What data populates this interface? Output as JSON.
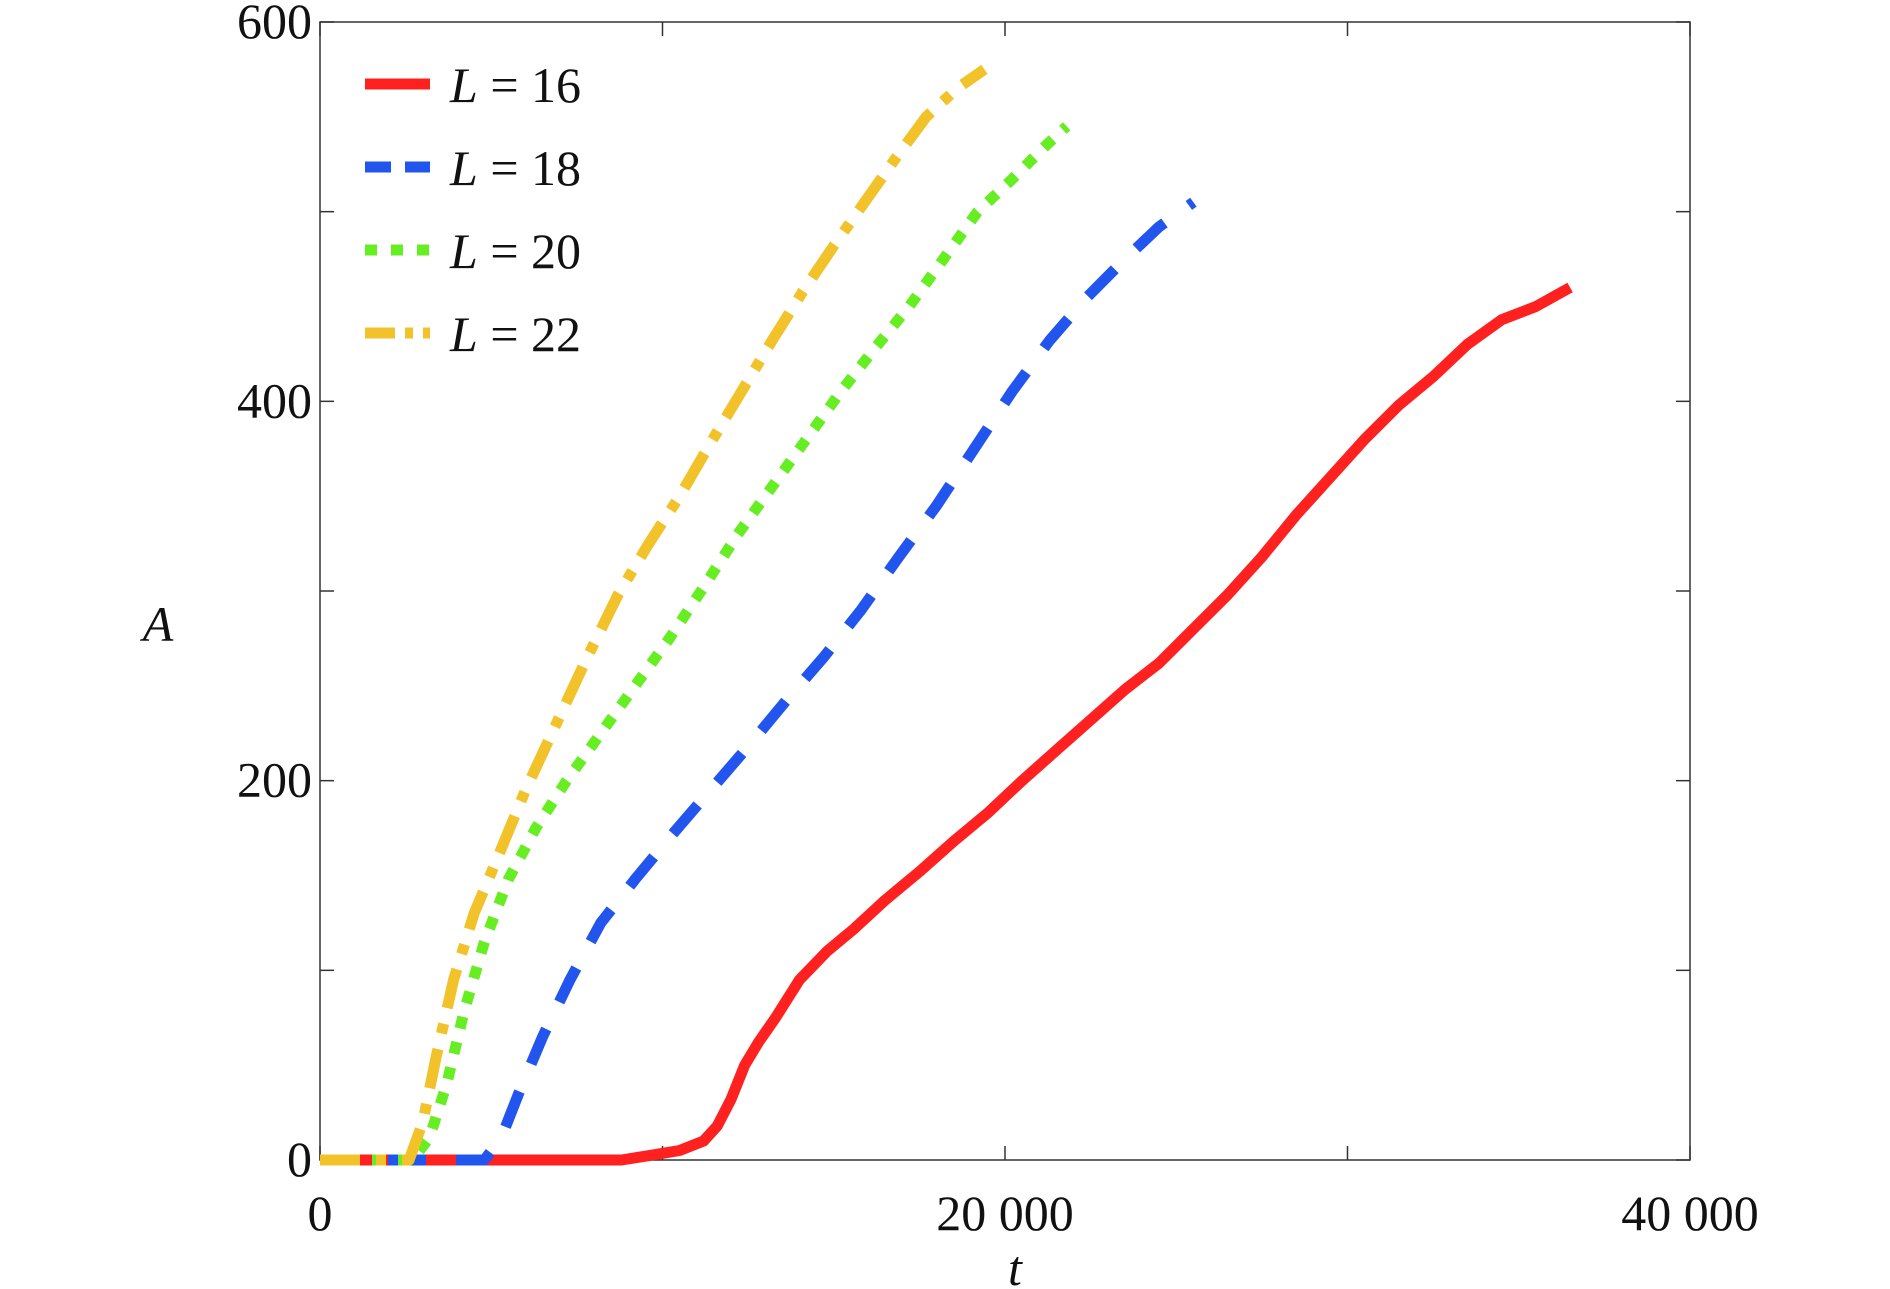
{
  "chart_data": {
    "type": "line",
    "xlabel": "t",
    "ylabel": "A",
    "xlim": [
      0,
      40000
    ],
    "ylim": [
      0,
      600
    ],
    "x_ticks": [
      0,
      10000,
      20000,
      30000,
      40000
    ],
    "x_tick_labels": [
      "0",
      "",
      "20 000",
      "",
      "40 000"
    ],
    "y_ticks": [
      0,
      100,
      200,
      300,
      400,
      500,
      600
    ],
    "y_tick_labels": [
      "0",
      "",
      "200",
      "",
      "400",
      "",
      "600"
    ],
    "grid": false,
    "legend_position": "top-left",
    "series": [
      {
        "name": "L = 16",
        "legend_var": "L",
        "legend_value": "= 16",
        "color": "#ff2020",
        "style": "solid",
        "x": [
          0,
          8800,
          9500,
          10500,
          11200,
          11600,
          12000,
          12400,
          12800,
          13300,
          14000,
          14800,
          15600,
          16500,
          17500,
          18500,
          19500,
          20500,
          21500,
          22500,
          23500,
          24500,
          25500,
          26500,
          27500,
          28500,
          29500,
          30500,
          31500,
          32500,
          33500,
          34500,
          35500,
          36500
        ],
        "y": [
          0,
          0,
          2,
          5,
          10,
          18,
          32,
          50,
          62,
          75,
          95,
          110,
          122,
          137,
          152,
          168,
          183,
          200,
          216,
          232,
          248,
          262,
          280,
          298,
          318,
          340,
          360,
          380,
          398,
          413,
          430,
          443,
          450,
          460
        ]
      },
      {
        "name": "L = 18",
        "legend_var": "L",
        "legend_value": "= 18",
        "color": "#2255ee",
        "style": "dashed",
        "x": [
          0,
          4800,
          5300,
          5800,
          6500,
          7300,
          8200,
          9200,
          10300,
          11400,
          12500,
          13600,
          14700,
          15800,
          16900,
          18000,
          19100,
          20200,
          21300,
          22400,
          23500,
          24500,
          25500
        ],
        "y": [
          0,
          0,
          12,
          35,
          65,
          95,
          125,
          148,
          172,
          195,
          218,
          242,
          265,
          290,
          318,
          345,
          375,
          405,
          432,
          455,
          475,
          492,
          505
        ]
      },
      {
        "name": "L = 20",
        "legend_var": "L",
        "legend_value": "= 20",
        "color": "#66ee22",
        "style": "dotted",
        "x": [
          0,
          2700,
          3200,
          3700,
          4200,
          4800,
          5500,
          6300,
          7200,
          8200,
          9200,
          10200,
          11200,
          12200,
          13200,
          14200,
          15200,
          16200,
          17200,
          18200,
          19200,
          20200,
          21200,
          21800
        ],
        "y": [
          0,
          0,
          12,
          40,
          78,
          115,
          148,
          175,
          200,
          225,
          250,
          275,
          302,
          330,
          355,
          380,
          405,
          428,
          450,
          475,
          500,
          517,
          535,
          545
        ]
      },
      {
        "name": "L = 22",
        "legend_var": "L",
        "legend_value": "= 22",
        "color": "#f2c22a",
        "style": "dashdot",
        "x": [
          0,
          2600,
          3000,
          3400,
          3900,
          4500,
          5200,
          6000,
          6900,
          7800,
          8700,
          9600,
          10500,
          11400,
          12300,
          13200,
          14100,
          15000,
          15900,
          16800,
          17700,
          18600,
          19400
        ],
        "y": [
          0,
          0,
          20,
          55,
          95,
          130,
          160,
          195,
          230,
          265,
          298,
          325,
          350,
          378,
          405,
          432,
          458,
          482,
          505,
          528,
          550,
          565,
          575
        ]
      }
    ]
  }
}
